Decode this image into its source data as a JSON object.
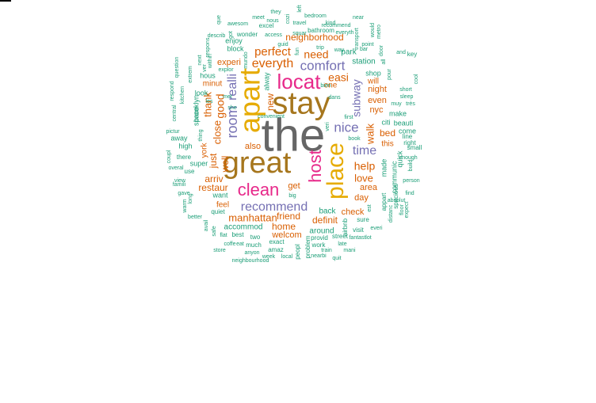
{
  "palette": {
    "gray": "#666666",
    "gold": "#a6761d",
    "pink": "#e7298a",
    "purple": "#7570b3",
    "orange": "#d95f02",
    "yellow": "#e6ab02",
    "teal": "#1b9e77",
    "olive": "#66a61e"
  },
  "words": [
    {
      "text": "the",
      "color": "gray"
    },
    {
      "text": "stay",
      "color": "gold"
    },
    {
      "text": "great",
      "color": "gold"
    },
    {
      "text": "apart",
      "color": "yellow"
    },
    {
      "text": "place",
      "color": "yellow"
    },
    {
      "text": "host",
      "color": "pink"
    },
    {
      "text": "locat",
      "color": "pink"
    },
    {
      "text": "clean",
      "color": "pink"
    },
    {
      "text": "recommend",
      "color": "purple"
    },
    {
      "text": "comfort",
      "color": "purple"
    },
    {
      "text": "nice",
      "color": "purple"
    },
    {
      "text": "time",
      "color": "purple"
    },
    {
      "text": "room",
      "color": "purple"
    },
    {
      "text": "subway",
      "color": "purple"
    },
    {
      "text": "realli",
      "color": "purple"
    },
    {
      "text": "everyth",
      "color": "orange"
    },
    {
      "text": "perfect",
      "color": "orange"
    },
    {
      "text": "need",
      "color": "orange"
    },
    {
      "text": "neighborhood",
      "color": "orange"
    },
    {
      "text": "easi",
      "color": "orange"
    },
    {
      "text": "help",
      "color": "orange"
    },
    {
      "text": "walk",
      "color": "orange"
    },
    {
      "text": "love",
      "color": "orange"
    },
    {
      "text": "manhattan",
      "color": "orange"
    },
    {
      "text": "friend",
      "color": "orange"
    },
    {
      "text": "good",
      "color": "orange"
    },
    {
      "text": "close",
      "color": "orange"
    },
    {
      "text": "thank",
      "color": "orange"
    },
    {
      "text": "just",
      "color": "orange"
    },
    {
      "text": "well",
      "color": "orange"
    },
    {
      "text": "restaur",
      "color": "orange"
    },
    {
      "text": "arriv",
      "color": "orange"
    },
    {
      "text": "definit",
      "color": "orange"
    },
    {
      "text": "check",
      "color": "orange"
    },
    {
      "text": "home",
      "color": "orange"
    },
    {
      "text": "welcom",
      "color": "orange"
    },
    {
      "text": "get",
      "color": "orange"
    },
    {
      "text": "day",
      "color": "orange"
    },
    {
      "text": "area",
      "color": "orange"
    },
    {
      "text": "bed",
      "color": "orange"
    },
    {
      "text": "night",
      "color": "orange"
    },
    {
      "text": "nyc",
      "color": "orange"
    },
    {
      "text": "experi",
      "color": "orange"
    },
    {
      "text": "also",
      "color": "orange"
    },
    {
      "text": "new",
      "color": "orange"
    },
    {
      "text": "even",
      "color": "orange"
    },
    {
      "text": "will",
      "color": "orange"
    },
    {
      "text": "this",
      "color": "orange"
    },
    {
      "text": "one",
      "color": "orange"
    },
    {
      "text": "feel",
      "color": "orange"
    },
    {
      "text": "minut",
      "color": "orange"
    },
    {
      "text": "york",
      "color": "orange"
    },
    {
      "text": "accommod",
      "color": "teal"
    },
    {
      "text": "back",
      "color": "teal"
    },
    {
      "text": "around",
      "color": "teal"
    },
    {
      "text": "park",
      "color": "teal"
    },
    {
      "text": "station",
      "color": "teal"
    },
    {
      "text": "shop",
      "color": "teal"
    },
    {
      "text": "citi",
      "color": "teal"
    },
    {
      "text": "make",
      "color": "teal"
    },
    {
      "text": "made",
      "color": "teal"
    },
    {
      "text": "communic",
      "color": "teal"
    },
    {
      "text": "quick",
      "color": "teal"
    },
    {
      "text": "beauti",
      "color": "teal"
    },
    {
      "text": "come",
      "color": "teal"
    },
    {
      "text": "line",
      "color": "teal"
    },
    {
      "text": "right",
      "color": "teal"
    },
    {
      "text": "small",
      "color": "teal"
    },
    {
      "text": "key",
      "color": "teal"
    },
    {
      "text": "alway",
      "color": "teal"
    },
    {
      "text": "look",
      "color": "teal"
    },
    {
      "text": "hous",
      "color": "teal"
    },
    {
      "text": "space",
      "color": "teal"
    },
    {
      "text": "brooklyn",
      "color": "teal"
    },
    {
      "text": "super",
      "color": "teal"
    },
    {
      "text": "high",
      "color": "teal"
    },
    {
      "text": "away",
      "color": "teal"
    },
    {
      "text": "there",
      "color": "teal"
    },
    {
      "text": "use",
      "color": "teal"
    },
    {
      "text": "want",
      "color": "teal"
    },
    {
      "text": "quiet",
      "color": "teal"
    },
    {
      "text": "best",
      "color": "teal"
    },
    {
      "text": "two",
      "color": "teal"
    },
    {
      "text": "much",
      "color": "teal"
    },
    {
      "text": "exact",
      "color": "teal"
    },
    {
      "text": "amaz",
      "color": "teal"
    },
    {
      "text": "provid",
      "color": "teal"
    },
    {
      "text": "street",
      "color": "teal"
    },
    {
      "text": "work",
      "color": "teal"
    },
    {
      "text": "train",
      "color": "teal"
    },
    {
      "text": "mani",
      "color": "teal"
    },
    {
      "text": "nearbi",
      "color": "teal"
    },
    {
      "text": "quit",
      "color": "teal"
    },
    {
      "text": "problem",
      "color": "teal"
    },
    {
      "text": "peopl",
      "color": "teal"
    },
    {
      "text": "airbnb",
      "color": "teal"
    },
    {
      "text": "visit",
      "color": "teal"
    },
    {
      "text": "sure",
      "color": "teal"
    },
    {
      "text": "appart",
      "color": "teal"
    },
    {
      "text": "spacious",
      "color": "teal"
    },
    {
      "text": "block",
      "color": "teal"
    },
    {
      "text": "enjoy",
      "color": "teal"
    },
    {
      "text": "wonder",
      "color": "teal"
    },
    {
      "text": "excel",
      "color": "teal"
    },
    {
      "text": "bathroom",
      "color": "teal"
    },
    {
      "text": "convenient",
      "color": "teal"
    },
    {
      "text": "first",
      "color": "teal"
    },
    {
      "text": "book",
      "color": "teal"
    },
    {
      "text": "big",
      "color": "teal"
    },
    {
      "text": "nous",
      "color": "teal"
    },
    {
      "text": "travel",
      "color": "teal"
    },
    {
      "text": "kind",
      "color": "teal"
    },
    {
      "text": "bedroom",
      "color": "teal"
    },
    {
      "text": "awesom",
      "color": "teal"
    },
    {
      "text": "meet",
      "color": "teal"
    },
    {
      "text": "they",
      "color": "teal"
    },
    {
      "text": "near",
      "color": "teal"
    },
    {
      "text": "and",
      "color": "teal"
    },
    {
      "text": "sleep",
      "color": "teal"
    },
    {
      "text": "short",
      "color": "teal"
    },
    {
      "text": "muy",
      "color": "teal"
    },
    {
      "text": "très",
      "color": "teal"
    },
    {
      "text": "bien",
      "color": "teal"
    },
    {
      "text": "trip",
      "color": "teal"
    },
    {
      "text": "describ",
      "color": "teal"
    },
    {
      "text": "within",
      "color": "teal"
    },
    {
      "text": "kitchen",
      "color": "teal"
    },
    {
      "text": "central",
      "color": "teal"
    },
    {
      "text": "pictur",
      "color": "teal"
    },
    {
      "text": "famili",
      "color": "teal"
    },
    {
      "text": "gave",
      "color": "teal"
    },
    {
      "text": "view",
      "color": "teal"
    },
    {
      "text": "better",
      "color": "teal"
    },
    {
      "text": "store",
      "color": "teal"
    },
    {
      "text": "neighbourhood",
      "color": "teal"
    },
    {
      "text": "week",
      "color": "teal"
    },
    {
      "text": "anyon",
      "color": "teal"
    },
    {
      "text": "local",
      "color": "teal"
    },
    {
      "text": "coffe",
      "color": "teal"
    },
    {
      "text": "flat",
      "color": "teal"
    },
    {
      "text": "late",
      "color": "teal"
    },
    {
      "text": "fantast",
      "color": "teal"
    },
    {
      "text": "lot",
      "color": "teal"
    },
    {
      "text": "everi",
      "color": "teal"
    },
    {
      "text": "find",
      "color": "teal"
    },
    {
      "text": "absolut",
      "color": "teal"
    },
    {
      "text": "build",
      "color": "teal"
    },
    {
      "text": "enough",
      "color": "teal"
    },
    {
      "text": "person",
      "color": "teal"
    },
    {
      "text": "cool",
      "color": "teal"
    },
    {
      "text": "transport",
      "color": "teal"
    },
    {
      "text": "metro",
      "color": "teal"
    },
    {
      "text": "door",
      "color": "teal"
    },
    {
      "text": "respons",
      "color": "teal"
    },
    {
      "text": "que",
      "color": "teal"
    },
    {
      "text": "explor",
      "color": "teal"
    },
    {
      "text": "extrem",
      "color": "teal"
    },
    {
      "text": "question",
      "color": "teal"
    },
    {
      "text": "respond",
      "color": "teal"
    },
    {
      "text": "coupl",
      "color": "teal"
    },
    {
      "text": "overal",
      "color": "teal"
    },
    {
      "text": "warm",
      "color": "teal"
    },
    {
      "text": "long",
      "color": "teal"
    },
    {
      "text": "avail",
      "color": "teal"
    },
    {
      "text": "safe",
      "color": "teal"
    },
    {
      "text": "distanc",
      "color": "teal"
    },
    {
      "text": "floor",
      "color": "teal"
    },
    {
      "text": "expect",
      "color": "teal"
    },
    {
      "text": "squar",
      "color": "teal"
    },
    {
      "text": "guid",
      "color": "teal"
    },
    {
      "text": "recommend",
      "color": "teal"
    },
    {
      "text": "everyth",
      "color": "teal"
    },
    {
      "text": "cozi",
      "color": "teal"
    },
    {
      "text": "left",
      "color": "teal"
    },
    {
      "text": "access",
      "color": "teal"
    },
    {
      "text": "got",
      "color": "teal"
    },
    {
      "text": "ver",
      "color": "teal"
    },
    {
      "text": "next",
      "color": "teal"
    },
    {
      "text": "les",
      "color": "teal"
    },
    {
      "text": "thing",
      "color": "teal"
    },
    {
      "text": "met",
      "color": "teal"
    },
    {
      "text": "she",
      "color": "teal"
    },
    {
      "text": "veri",
      "color": "teal"
    },
    {
      "text": "dans",
      "color": "teal"
    },
    {
      "text": "est",
      "color": "teal"
    },
    {
      "text": "bar",
      "color": "teal"
    },
    {
      "text": "pour",
      "color": "teal"
    },
    {
      "text": "all",
      "color": "teal"
    },
    {
      "text": "point",
      "color": "teal"
    },
    {
      "text": "would",
      "color": "teal"
    },
    {
      "text": "way",
      "color": "teal"
    },
    {
      "text": "fun",
      "color": "teal"
    },
    {
      "text": "mundo",
      "color": "teal"
    },
    {
      "text": "eat",
      "color": "teal"
    },
    {
      "text": "still",
      "color": "teal"
    },
    {
      "text": "food",
      "color": "teal"
    },
    {
      "text": "etc",
      "color": "teal"
    }
  ]
}
